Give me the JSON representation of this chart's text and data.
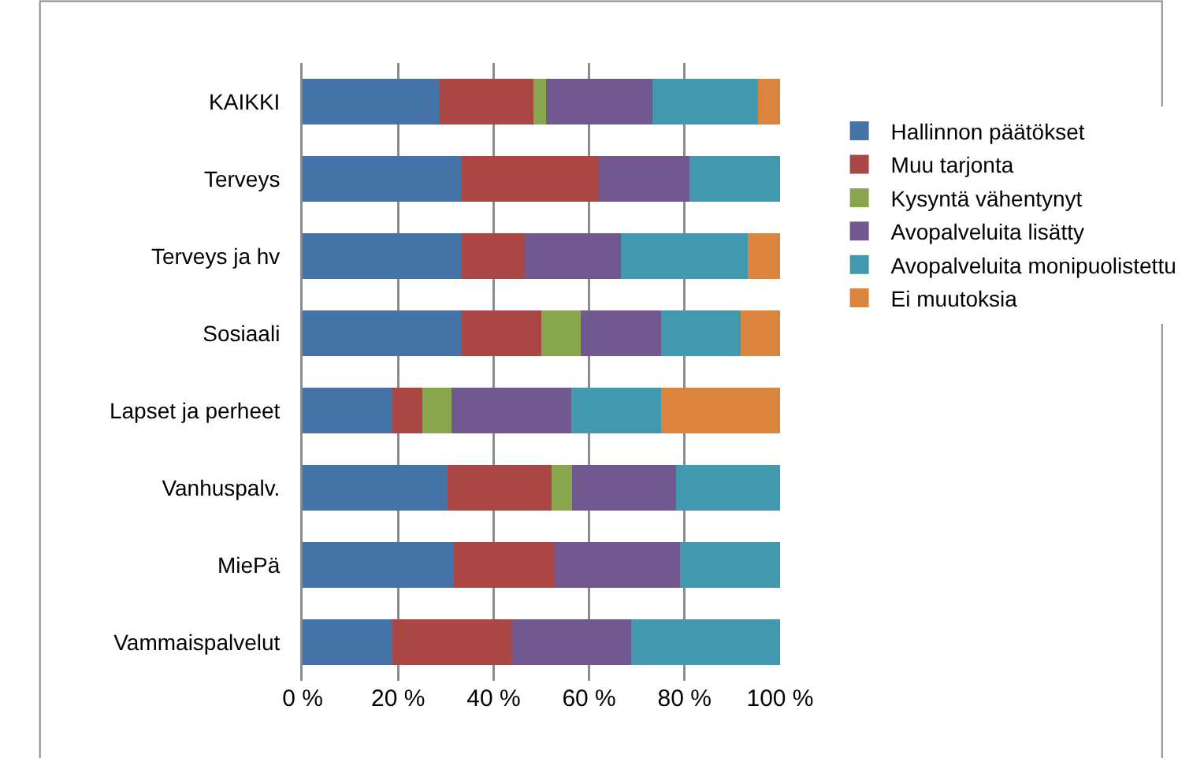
{
  "chart_data": {
    "type": "bar",
    "orientation": "horizontal",
    "stacked": true,
    "categories": [
      "KAIKKI",
      "Terveys",
      "Terveys ja hv",
      "Sosiaali",
      "Lapset ja perheet",
      "Vanhuspalv.",
      "MiePä",
      "Vammaispalvelut"
    ],
    "series": [
      {
        "name": "Hallinnon päätökset",
        "color": "#4572a7",
        "values": [
          28.7,
          33.3,
          33.3,
          33.3,
          18.75,
          30.4,
          31.6,
          18.75
        ]
      },
      {
        "name": "Muu tarjonta",
        "color": "#aa4643",
        "values": [
          19.7,
          28.7,
          13.3,
          16.7,
          6.25,
          21.7,
          21.1,
          25
        ]
      },
      {
        "name": "Kysyntä vähentynyt",
        "color": "#89a54e",
        "values": [
          2.6,
          0,
          0,
          8.3,
          6.25,
          4.3,
          0,
          0
        ]
      },
      {
        "name": "Avopalveluita lisätty",
        "color": "#71588f",
        "values": [
          22.2,
          19.1,
          20,
          16.7,
          25,
          21.8,
          26.3,
          25
        ]
      },
      {
        "name": "Avopalveluita monipuolistettu",
        "color": "#4198af",
        "values": [
          22.2,
          18.9,
          26.7,
          16.7,
          18.75,
          21.8,
          21,
          31.25
        ]
      },
      {
        "name": "Ei muutoksia",
        "color": "#db843d",
        "values": [
          4.6,
          0,
          6.7,
          8.3,
          25,
          0,
          0,
          0
        ]
      }
    ],
    "xlim": [
      0,
      100
    ],
    "xticks": [
      {
        "value": 0,
        "label": "0 %"
      },
      {
        "value": 20,
        "label": "20 %"
      },
      {
        "value": 40,
        "label": "40 %"
      },
      {
        "value": 60,
        "label": "60 %"
      },
      {
        "value": 80,
        "label": "80 %"
      },
      {
        "value": 100,
        "label": "100 %"
      }
    ],
    "grid": "x",
    "legend": "right"
  }
}
